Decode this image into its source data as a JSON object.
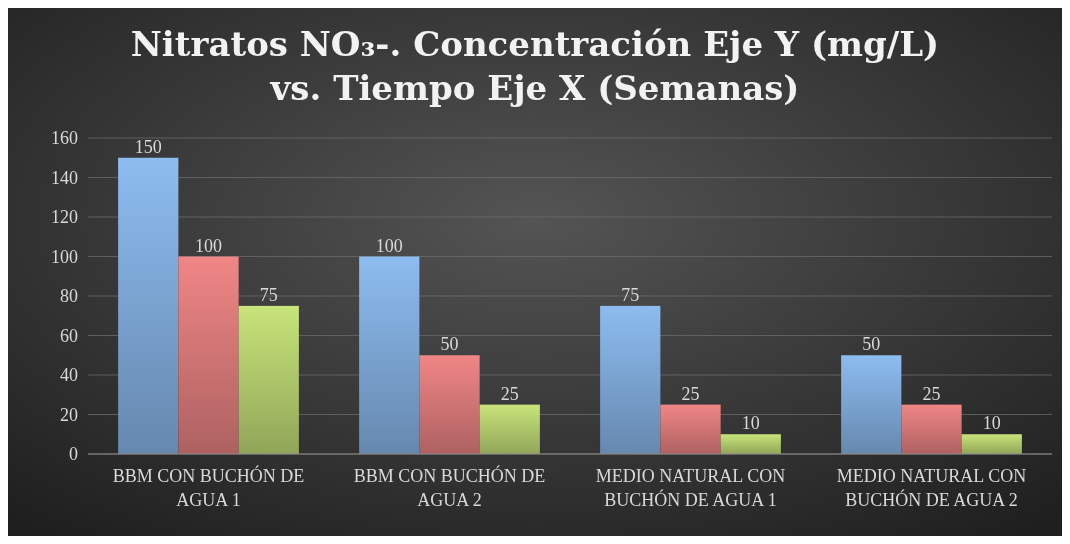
{
  "chart_data": {
    "type": "bar",
    "title": "Nitratos NO₃-. Concentración Eje Y (mg/L)\nvs. Tiempo Eje X (Semanas)",
    "categories": [
      "BBM CON BUCHÓN DE AGUA 1",
      "BBM CON BUCHÓN DE AGUA 2",
      "MEDIO NATURAL CON BUCHÓN DE AGUA 1",
      "MEDIO NATURAL CON BUCHÓN DE AGUA 2"
    ],
    "series": [
      {
        "color": "#8dbcf0",
        "values": [
          150,
          100,
          75,
          50
        ]
      },
      {
        "color": "#f08686",
        "values": [
          100,
          50,
          25,
          25
        ]
      },
      {
        "color": "#c8e47a",
        "values": [
          75,
          25,
          10,
          10
        ]
      }
    ],
    "ylim": [
      0,
      160
    ],
    "yticks": [
      0,
      20,
      40,
      60,
      80,
      100,
      120,
      140,
      160
    ],
    "grid": "y",
    "data_labels": true
  }
}
